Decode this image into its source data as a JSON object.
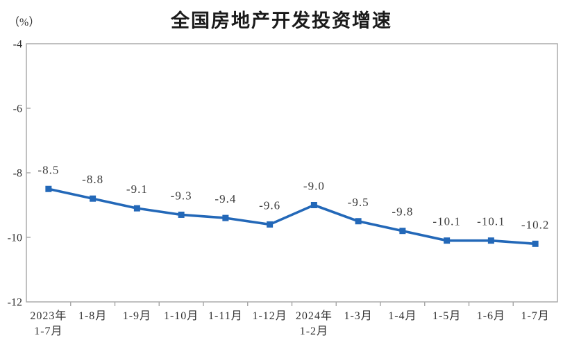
{
  "header": {
    "title": "全国房地产开发投资增速",
    "y_axis_unit": "（%）"
  },
  "chart_data": {
    "type": "line",
    "title": "全国房地产开发投资增速",
    "ylabel": "（%）",
    "xlabel": "",
    "categories": [
      [
        "2023年",
        "1-7月"
      ],
      [
        "1-8月"
      ],
      [
        "1-9月"
      ],
      [
        "1-10月"
      ],
      [
        "1-11月"
      ],
      [
        "1-12月"
      ],
      [
        "2024年",
        "1-2月"
      ],
      [
        "1-3月"
      ],
      [
        "1-4月"
      ],
      [
        "1-5月"
      ],
      [
        "1-6月"
      ],
      [
        "1-7月"
      ]
    ],
    "values": [
      -8.5,
      -8.8,
      -9.1,
      -9.3,
      -9.4,
      -9.6,
      -9.0,
      -9.5,
      -9.8,
      -10.1,
      -10.1,
      -10.2
    ],
    "point_labels": [
      "-8.5",
      "-8.8",
      "-9.1",
      "-9.3",
      "-9.4",
      "-9.6",
      "-9.0",
      "-9.5",
      "-9.8",
      "-10.1",
      "-10.1",
      "-10.2"
    ],
    "yticks": [
      -4,
      -6,
      -8,
      -10,
      -12
    ],
    "ytick_labels": [
      "-4",
      "-6",
      "-8",
      "-10",
      "-12"
    ],
    "ylim": [
      -12,
      -4
    ],
    "grid": false,
    "legend_position": "none",
    "marker_shape": "square",
    "colors": {
      "line": "#2368b8",
      "marker": "#2368b8",
      "plot_border": "#a6a6a6",
      "tick": "#a6a6a6",
      "point_label": "#3b3b3b",
      "axis_text": "#303030"
    }
  }
}
